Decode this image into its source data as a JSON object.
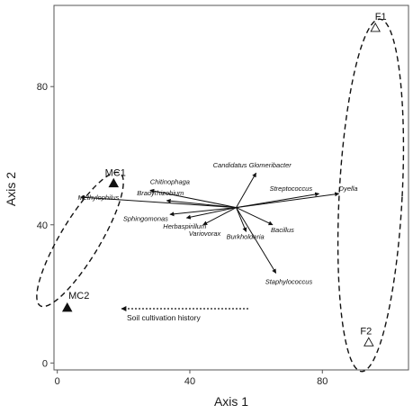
{
  "chart_data": {
    "type": "scatter",
    "xlabel": "Axis 1",
    "ylabel": "Axis 2",
    "xlim": [
      -1,
      106
    ],
    "ylim": [
      -2,
      103.5
    ],
    "xticks": [
      0,
      40,
      80
    ],
    "yticks": [
      0,
      40,
      80
    ],
    "grid": false,
    "points": [
      {
        "label": "MC1",
        "x": 17,
        "y": 52,
        "marker": "filled-triangle"
      },
      {
        "label": "MC2",
        "x": 3,
        "y": 16,
        "marker": "filled-triangle"
      },
      {
        "label": "F1",
        "x": 96,
        "y": 97,
        "marker": "open-triangle"
      },
      {
        "label": "F2",
        "x": 94,
        "y": 6,
        "marker": "open-triangle"
      }
    ],
    "vectors": {
      "origin": [
        54,
        45
      ],
      "items": [
        {
          "label": "Candidatus Glomeribacter",
          "end": [
            60,
            55
          ]
        },
        {
          "label": "Streptococcus",
          "end": [
            79,
            49
          ]
        },
        {
          "label": "Dyella",
          "end": [
            85,
            49
          ]
        },
        {
          "label": "Bacillus",
          "end": [
            65,
            40
          ]
        },
        {
          "label": "Burkholderia",
          "end": [
            57,
            38
          ]
        },
        {
          "label": "Staphylococcus",
          "end": [
            66,
            26
          ]
        },
        {
          "label": "Chitinophaga",
          "end": [
            28,
            50
          ]
        },
        {
          "label": "Bradyrhizobium",
          "end": [
            33,
            47
          ]
        },
        {
          "label": "Methylophilus",
          "end": [
            7,
            48
          ]
        },
        {
          "label": "Sphingomonas",
          "end": [
            34,
            43
          ]
        },
        {
          "label": "Herbaspirillum",
          "end": [
            39,
            42
          ]
        },
        {
          "label": "Variovorax",
          "end": [
            44,
            40
          ]
        }
      ]
    },
    "ellipses": [
      "MC group",
      "F group"
    ],
    "annotation": {
      "text": "Soil cultivation history",
      "direction": "left"
    }
  },
  "colors": {
    "ink": "#111111",
    "axis": "#555555"
  }
}
